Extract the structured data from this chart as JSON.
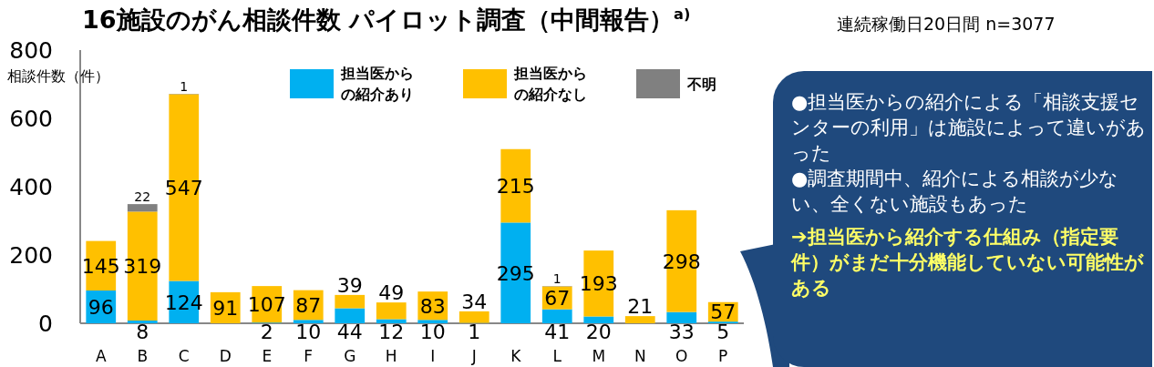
{
  "chart_data": {
    "type": "bar",
    "stacked": true,
    "title": "16施設のがん相談件数  パイロット調査（中間報告）$^{a)}$",
    "subtitle": "連続稼働日20日間  n=3077",
    "ylabel": "相談件数（件）",
    "categories": [
      "A",
      "B",
      "C",
      "D",
      "E",
      "F",
      "G",
      "H",
      "I",
      "J",
      "K",
      "L",
      "M",
      "N",
      "O",
      "P"
    ],
    "series": [
      {
        "name": "担当医からの紹介あり",
        "color": "#00b0f0",
        "values": [
          96,
          8,
          124,
          null,
          2,
          10,
          44,
          12,
          10,
          1,
          295,
          41,
          20,
          null,
          33,
          5
        ]
      },
      {
        "name": "担当医からの紹介なし",
        "color": "#ffc000",
        "values": [
          145,
          319,
          547,
          91,
          107,
          87,
          39,
          49,
          83,
          34,
          215,
          67,
          193,
          21,
          298,
          57
        ]
      },
      {
        "name": "不明",
        "color": "#808080",
        "values": [
          null,
          22,
          1,
          null,
          null,
          null,
          null,
          null,
          null,
          null,
          null,
          1,
          null,
          null,
          null,
          null
        ]
      }
    ],
    "ylim": [
      0,
      800
    ],
    "yticks": [
      0,
      200,
      400,
      600,
      800
    ],
    "data_labels": true,
    "legend": "top",
    "grid": false,
    "annotations": [
      "●担当医からの紹介による「相談支援センターの利用」は施設によって違いがあった",
      "●調査期間中、紹介による相談が少ない、全くない施設もあった",
      "➔担当医から紹介する仕組み（指定要件）がまだ十分機能していない可能性がある"
    ]
  }
}
